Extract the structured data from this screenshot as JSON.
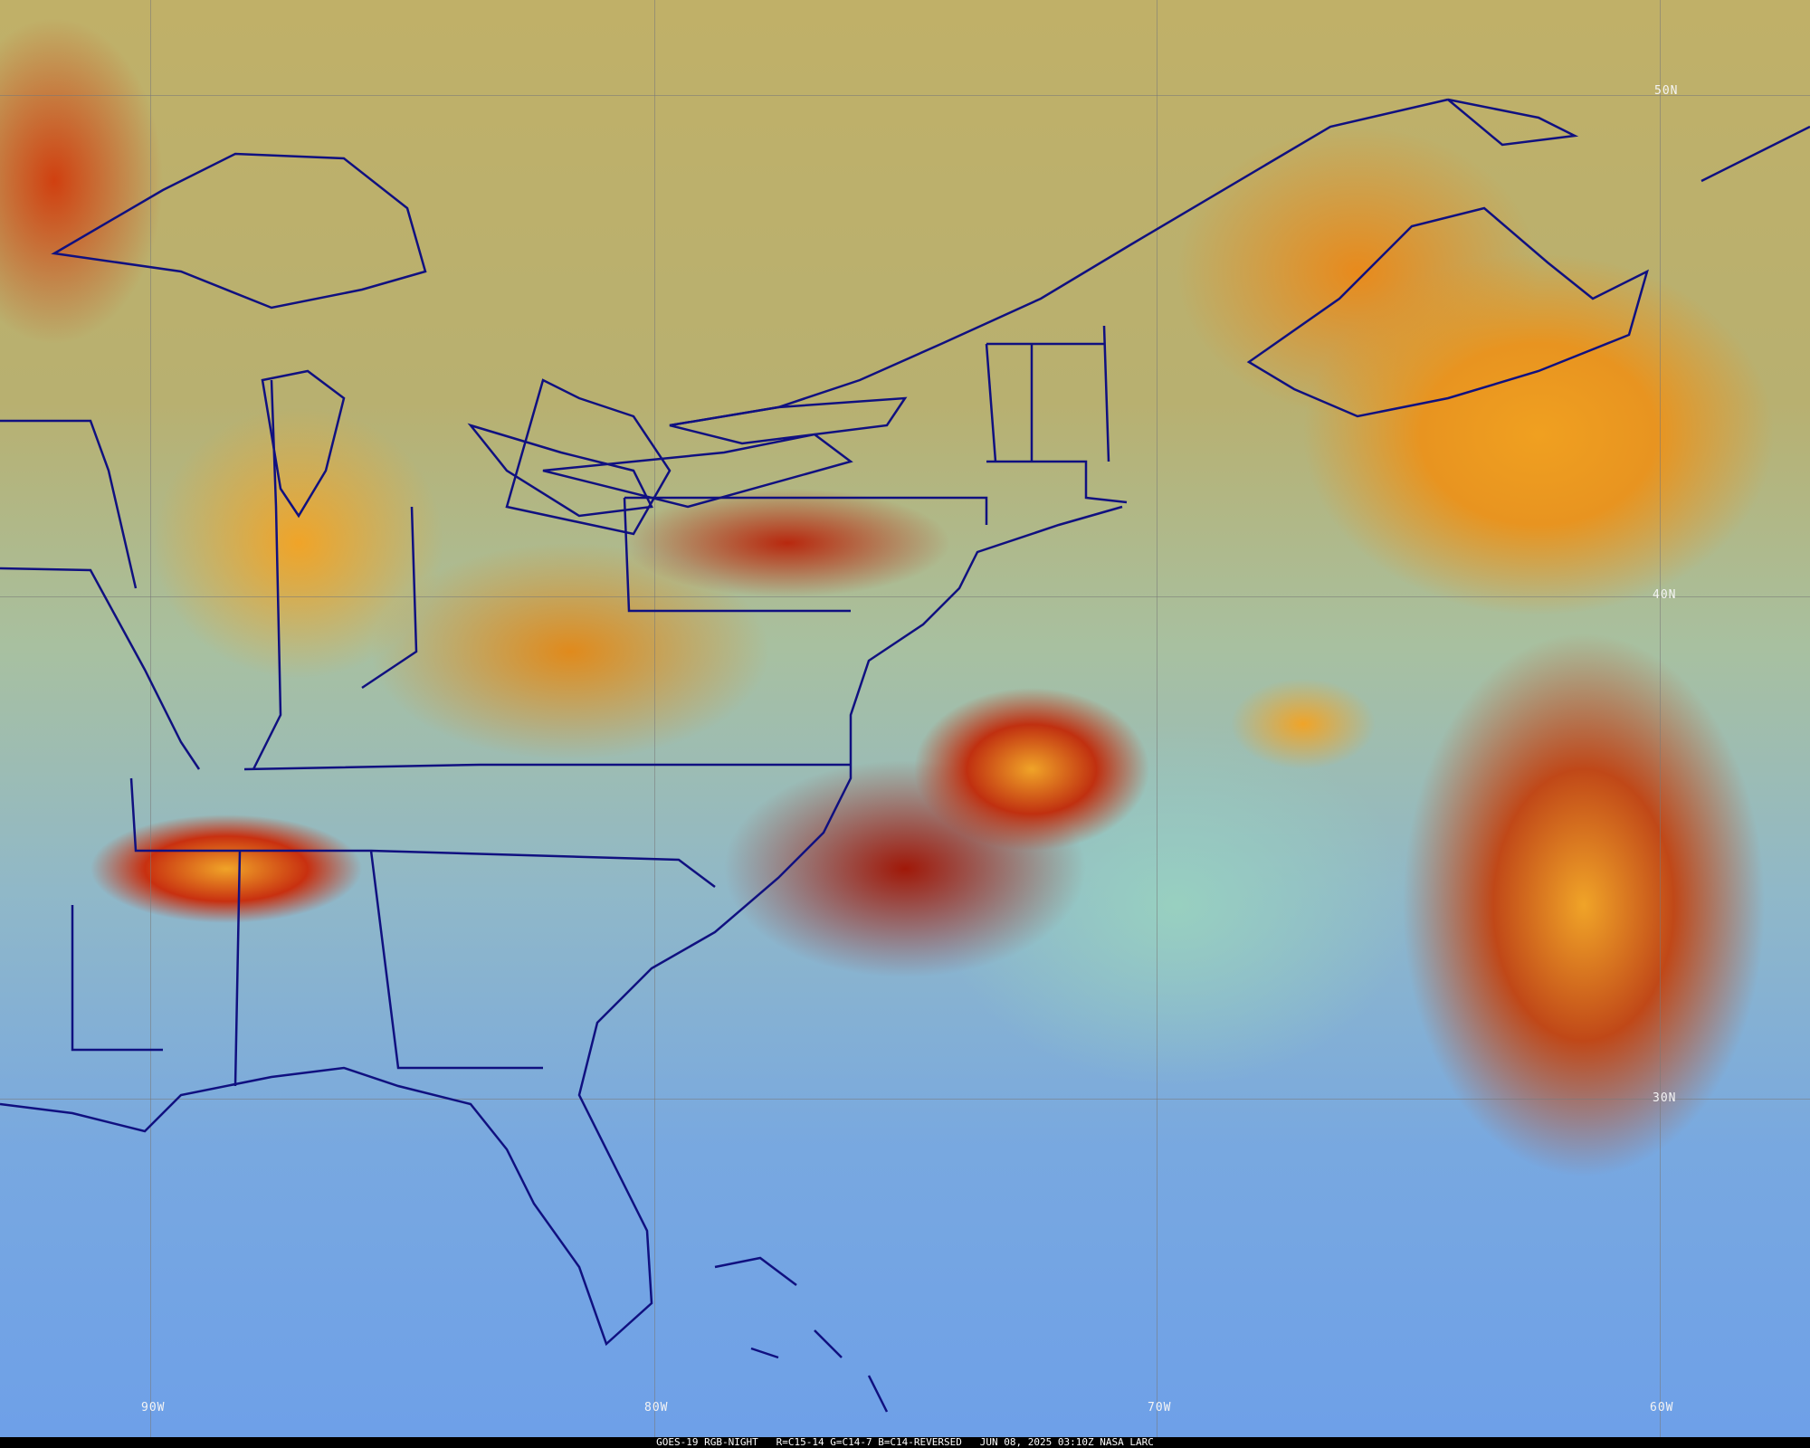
{
  "caption": "GOES-19 RGB-NIGHT   R=C15-14 G=C14-7 B=C14-REVERSED   JUN 08, 2025 03:10Z NASA LARC",
  "latitude_labels": [
    "50N",
    "40N",
    "30N"
  ],
  "longitude_labels": [
    "90W",
    "80W",
    "70W",
    "60W"
  ],
  "colors": {
    "boundaries": "#101080",
    "gridlines": "#787878",
    "caption_bg": "#000000",
    "caption_text": "#ffffff"
  }
}
